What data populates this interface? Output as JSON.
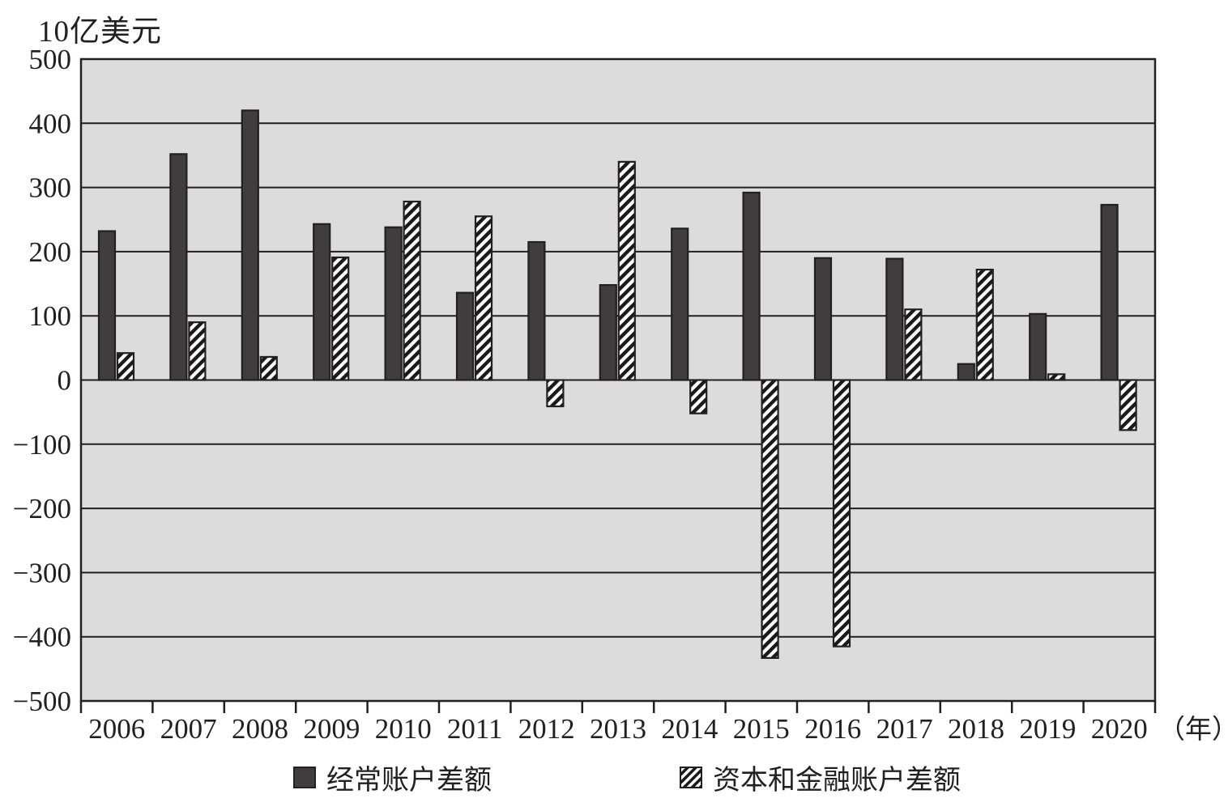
{
  "chart_data": {
    "type": "bar",
    "title": "10亿美元",
    "x_axis_unit": "（年）",
    "categories": [
      "2006",
      "2007",
      "2008",
      "2009",
      "2010",
      "2011",
      "2012",
      "2013",
      "2014",
      "2015",
      "2016",
      "2017",
      "2018",
      "2019",
      "2020"
    ],
    "series": [
      {
        "name": "经常账户差额",
        "style": "solid",
        "values": [
          232,
          352,
          420,
          243,
          238,
          136,
          215,
          148,
          236,
          292,
          190,
          189,
          25,
          103,
          273
        ]
      },
      {
        "name": "资本和金融账户差额",
        "style": "hatched",
        "values": [
          42,
          90,
          36,
          191,
          278,
          255,
          -41,
          340,
          -52,
          -433,
          -415,
          110,
          172,
          9,
          -78
        ]
      }
    ],
    "ylim": [
      -500,
      500
    ],
    "ytick_step": 100,
    "ytick_labels": [
      "500",
      "400",
      "300",
      "200",
      "100",
      "0",
      "−100",
      "−200",
      "−300",
      "−400",
      "−500"
    ],
    "grid": true,
    "legend_position": "bottom",
    "colors": {
      "bar_fill": "#413c3e",
      "outline": "#231f20",
      "plot_bg": "#dcdcdc",
      "hatch_bg": "#ffffff",
      "hatch_stripe": "#1a1a1a"
    }
  }
}
